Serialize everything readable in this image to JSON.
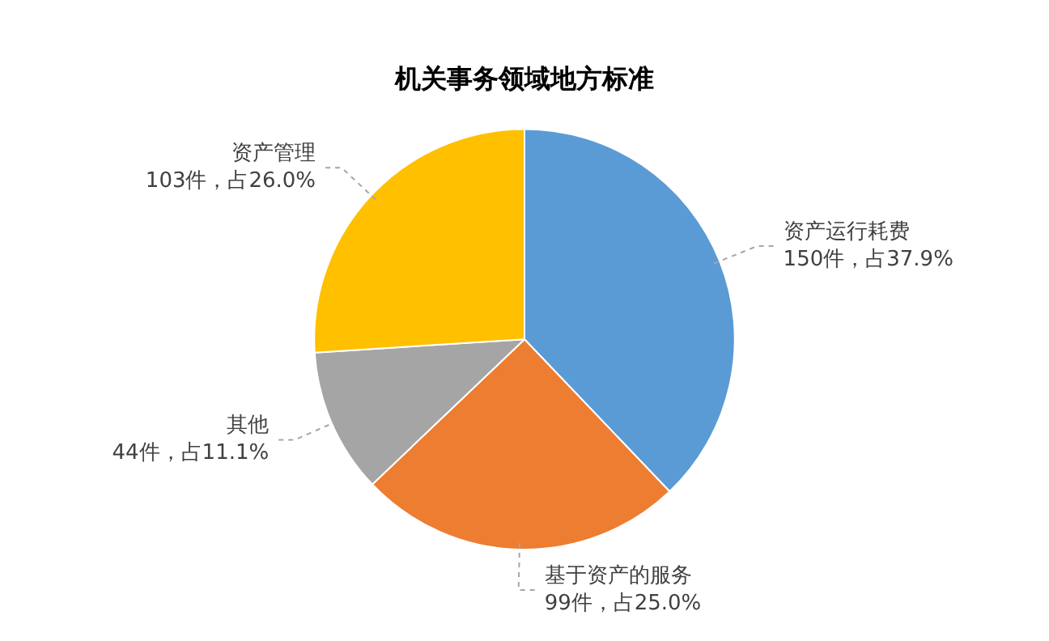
{
  "chart_data": {
    "type": "pie",
    "title": "机关事务领域地方标准",
    "categories": [
      "资产运行耗费",
      "基于资产的服务",
      "其他",
      "资产管理"
    ],
    "values": [
      150,
      99,
      44,
      103
    ],
    "colors": [
      "#5b9bd5",
      "#ed7d31",
      "#a5a5a5",
      "#ffc000"
    ],
    "value_labels": [
      "150件，占37.9%",
      "99件，占25.0%",
      "44件，占11.1%",
      "103件，占26.0%"
    ],
    "legend": false
  }
}
